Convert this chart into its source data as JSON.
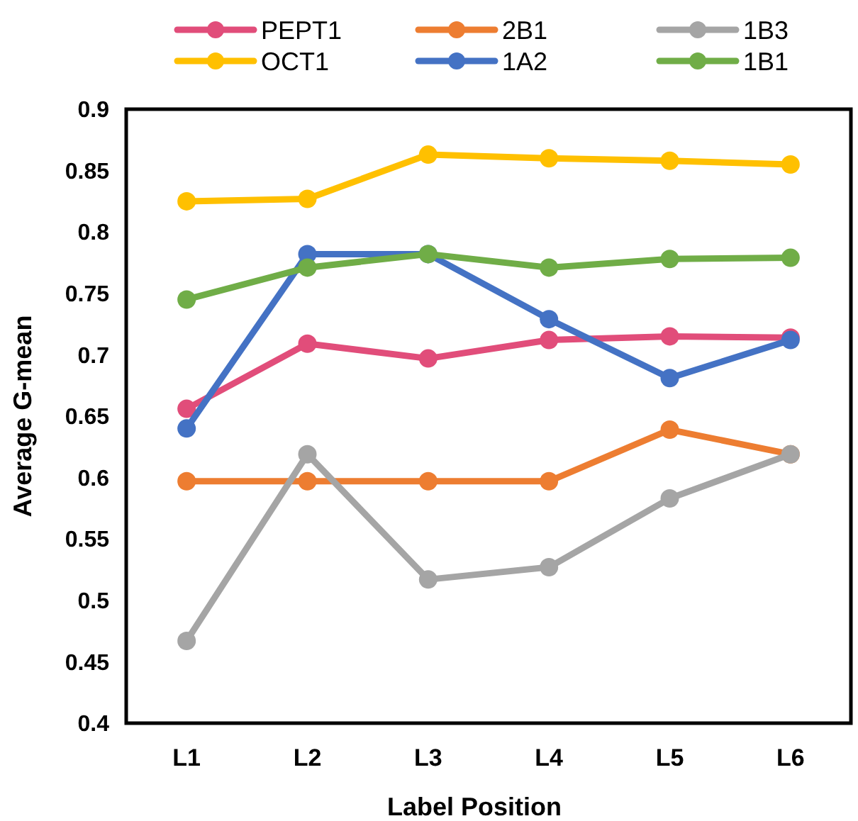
{
  "chart_data": {
    "type": "line",
    "xlabel": "Label Position",
    "ylabel": "Average G-mean",
    "categories": [
      "L1",
      "L2",
      "L3",
      "L4",
      "L5",
      "L6"
    ],
    "ylim": [
      0.4,
      0.9
    ],
    "yticks": [
      0.4,
      0.45,
      0.5,
      0.55,
      0.6,
      0.65,
      0.7,
      0.75,
      0.8,
      0.85,
      0.9
    ],
    "grid": false,
    "legend": "top",
    "marker": "circle",
    "line_style": "solid",
    "series": [
      {
        "name": "PEPT1",
        "color": "#e14d7a",
        "values": [
          0.656,
          0.709,
          0.697,
          0.712,
          0.715,
          0.714
        ]
      },
      {
        "name": "2B1",
        "color": "#ed7d31",
        "values": [
          0.597,
          0.597,
          0.597,
          0.597,
          0.639,
          0.619
        ]
      },
      {
        "name": "1B3",
        "color": "#a5a5a5",
        "values": [
          0.467,
          0.619,
          0.517,
          0.527,
          0.583,
          0.619
        ]
      },
      {
        "name": "OCT1",
        "color": "#ffc000",
        "values": [
          0.825,
          0.827,
          0.863,
          0.86,
          0.858,
          0.855
        ]
      },
      {
        "name": "1A2",
        "color": "#4472c4",
        "values": [
          0.64,
          0.782,
          0.782,
          0.729,
          0.681,
          0.712
        ]
      },
      {
        "name": "1B1",
        "color": "#70ad47",
        "values": [
          0.745,
          0.771,
          0.782,
          0.771,
          0.778,
          0.779
        ]
      }
    ]
  }
}
